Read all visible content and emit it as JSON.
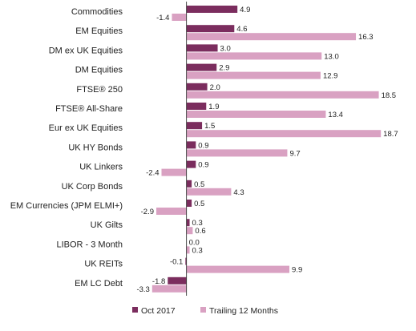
{
  "chart_data": {
    "type": "bar",
    "orientation": "horizontal",
    "categories": [
      "Commodities",
      "EM Equities",
      "DM ex UK Equities",
      "DM Equities",
      "FTSE® 250",
      "FTSE® All-Share",
      "Eur ex UK Equities",
      "UK HY Bonds",
      "UK Linkers",
      "UK Corp Bonds",
      "EM Currencies (JPM ELMI+)",
      "UK Gilts",
      "LIBOR - 3 Month",
      "UK REITs",
      "EM LC Debt"
    ],
    "series": [
      {
        "name": "Oct 2017",
        "color": "#7b2d5e",
        "values": [
          4.9,
          4.6,
          3.0,
          2.9,
          2.0,
          1.9,
          1.5,
          0.9,
          0.9,
          0.5,
          0.5,
          0.3,
          0.0,
          -0.1,
          -1.8
        ],
        "labels": [
          "4.9",
          "4.6",
          "3.0",
          "2.9",
          "2.0",
          "1.9",
          "1.5",
          "0.9",
          "0.9",
          "0.5",
          "0.5",
          "0.3",
          "0.0",
          "-0.1",
          "-1.8"
        ]
      },
      {
        "name": "Trailing 12 Months",
        "color": "#d9a1c2",
        "values": [
          -1.4,
          16.3,
          13.0,
          12.9,
          18.5,
          13.4,
          18.7,
          9.7,
          -2.4,
          4.3,
          -2.9,
          0.6,
          0.3,
          9.9,
          -3.3
        ],
        "labels": [
          "-1.4",
          "16.3",
          "13.0",
          "12.9",
          "18.5",
          "13.4",
          "18.7",
          "9.7",
          "-2.4",
          "4.3",
          "-2.9",
          "0.6",
          "0.3",
          "9.9",
          "-3.3"
        ]
      }
    ],
    "xlim": [
      -5.6,
      21
    ],
    "grid": false,
    "legend": "bottom-center"
  }
}
